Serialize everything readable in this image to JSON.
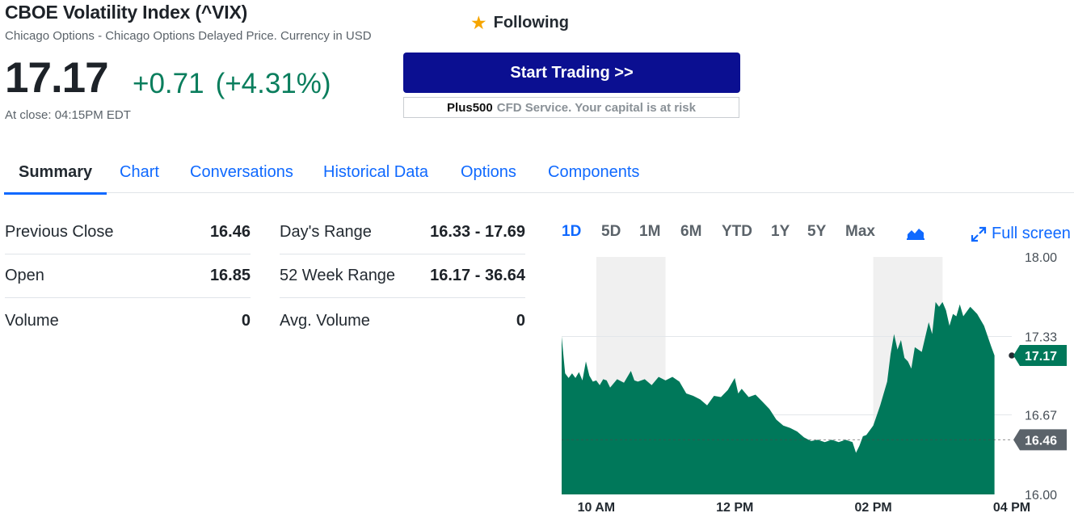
{
  "header": {
    "title": "CBOE Volatility Index (^VIX)",
    "subtitle": "Chicago Options - Chicago Options Delayed Price. Currency in USD",
    "follow_label": "Following",
    "follow_icon": "star-icon"
  },
  "quote": {
    "price": "17.17",
    "change": "+0.71",
    "change_pct": "(+4.31%)",
    "close_time": "At close: 04:15PM EDT",
    "change_color": "#0a7e5d"
  },
  "promo": {
    "button_label": "Start Trading >>",
    "brand": "Plus500",
    "note": "CFD Service. Your capital is at risk",
    "button_color": "#0b0f91"
  },
  "tabs": [
    {
      "label": "Summary",
      "active": true
    },
    {
      "label": "Chart"
    },
    {
      "label": "Conversations"
    },
    {
      "label": "Historical Data"
    },
    {
      "label": "Options"
    },
    {
      "label": "Components"
    }
  ],
  "stats": {
    "left": [
      {
        "label": "Previous Close",
        "value": "16.46"
      },
      {
        "label": "Open",
        "value": "16.85"
      },
      {
        "label": "Volume",
        "value": "0"
      }
    ],
    "right": [
      {
        "label": "Day's Range",
        "value": "16.33 - 17.69"
      },
      {
        "label": "52 Week Range",
        "value": "16.17 - 36.64"
      },
      {
        "label": "Avg. Volume",
        "value": "0"
      }
    ]
  },
  "chart_controls": {
    "ranges": [
      "1D",
      "5D",
      "1M",
      "6M",
      "YTD",
      "1Y",
      "5Y",
      "Max"
    ],
    "active_range": "1D",
    "chart_type_icon": "mountain-chart-icon",
    "fullscreen_label": "Full screen",
    "fullscreen_icon": "expand-icon"
  },
  "chart_data": {
    "type": "area",
    "x_ticks": [
      "10 AM",
      "12 PM",
      "02 PM",
      "04 PM"
    ],
    "y_ticks": [
      "18.00",
      "17.33",
      "16.67",
      "16.00"
    ],
    "ylim": [
      16.0,
      18.0
    ],
    "x_hours": [
      9.5,
      16.0
    ],
    "grid": true,
    "fill_color": "#00785a",
    "current_label": "17.17",
    "prev_close_label": "16.46",
    "current_value": 17.17,
    "prev_close_value": 16.46,
    "series": [
      {
        "values": [
          [
            9.5,
            17.33
          ],
          [
            9.55,
            17.02
          ],
          [
            9.6,
            16.98
          ],
          [
            9.65,
            17.02
          ],
          [
            9.7,
            16.98
          ],
          [
            9.75,
            17.03
          ],
          [
            9.8,
            16.96
          ],
          [
            9.85,
            17.12
          ],
          [
            9.9,
            17.0
          ],
          [
            9.95,
            16.95
          ],
          [
            10.0,
            16.96
          ],
          [
            10.05,
            16.92
          ],
          [
            10.1,
            16.97
          ],
          [
            10.15,
            16.96
          ],
          [
            10.2,
            16.9
          ],
          [
            10.3,
            16.97
          ],
          [
            10.4,
            16.94
          ],
          [
            10.5,
            17.04
          ],
          [
            10.55,
            16.96
          ],
          [
            10.6,
            16.95
          ],
          [
            10.7,
            16.97
          ],
          [
            10.8,
            16.92
          ],
          [
            10.9,
            16.99
          ],
          [
            11.0,
            16.96
          ],
          [
            11.1,
            16.99
          ],
          [
            11.2,
            16.95
          ],
          [
            11.3,
            16.85
          ],
          [
            11.4,
            16.83
          ],
          [
            11.5,
            16.8
          ],
          [
            11.6,
            16.75
          ],
          [
            11.7,
            16.83
          ],
          [
            11.8,
            16.82
          ],
          [
            11.9,
            16.88
          ],
          [
            12.0,
            16.98
          ],
          [
            12.05,
            16.85
          ],
          [
            12.1,
            16.89
          ],
          [
            12.2,
            16.82
          ],
          [
            12.3,
            16.84
          ],
          [
            12.4,
            16.78
          ],
          [
            12.5,
            16.72
          ],
          [
            12.6,
            16.63
          ],
          [
            12.7,
            16.58
          ],
          [
            12.8,
            16.56
          ],
          [
            12.9,
            16.53
          ],
          [
            13.0,
            16.48
          ],
          [
            13.1,
            16.45
          ],
          [
            13.2,
            16.46
          ],
          [
            13.3,
            16.44
          ],
          [
            13.4,
            16.46
          ],
          [
            13.5,
            16.44
          ],
          [
            13.6,
            16.46
          ],
          [
            13.7,
            16.44
          ],
          [
            13.75,
            16.35
          ],
          [
            13.8,
            16.41
          ],
          [
            13.85,
            16.49
          ],
          [
            13.9,
            16.5
          ],
          [
            14.0,
            16.58
          ],
          [
            14.1,
            16.75
          ],
          [
            14.2,
            16.95
          ],
          [
            14.25,
            17.18
          ],
          [
            14.3,
            17.35
          ],
          [
            14.35,
            17.22
          ],
          [
            14.4,
            17.3
          ],
          [
            14.45,
            17.15
          ],
          [
            14.5,
            17.12
          ],
          [
            14.55,
            17.06
          ],
          [
            14.6,
            17.24
          ],
          [
            14.7,
            17.2
          ],
          [
            14.8,
            17.45
          ],
          [
            14.85,
            17.35
          ],
          [
            14.9,
            17.62
          ],
          [
            14.95,
            17.58
          ],
          [
            15.0,
            17.62
          ],
          [
            15.05,
            17.55
          ],
          [
            15.1,
            17.42
          ],
          [
            15.15,
            17.52
          ],
          [
            15.2,
            17.5
          ],
          [
            15.25,
            17.6
          ],
          [
            15.3,
            17.5
          ],
          [
            15.4,
            17.58
          ],
          [
            15.5,
            17.52
          ],
          [
            15.6,
            17.42
          ],
          [
            15.7,
            17.25
          ],
          [
            15.75,
            17.17
          ]
        ]
      }
    ]
  }
}
